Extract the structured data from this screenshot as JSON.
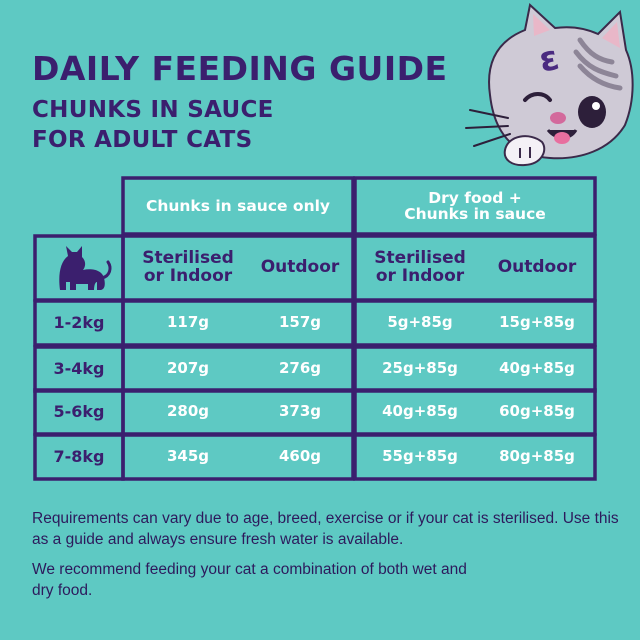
{
  "title": "DAILY FEEDING GUIDE",
  "subtitle_line1": "CHUNKS IN SAUCE",
  "subtitle_line2": "FOR ADULT CATS",
  "colors": {
    "background": "#5ec9c3",
    "purple": "#3b1f6e",
    "border": "#3b1f6e",
    "white": "#ffffff"
  },
  "table": {
    "group_headers": [
      "Chunks in sauce only",
      "Dry food +\nChunks in sauce"
    ],
    "group_header_2_line1": "Dry food +",
    "group_header_2_line2": "Chunks in sauce",
    "sub_headers": {
      "sterilised_line1": "Sterilised",
      "sterilised_line2": "or Indoor",
      "outdoor": "Outdoor"
    },
    "rows": [
      {
        "weight": "1-2kg",
        "only_sterilised": "117g",
        "only_outdoor": "157g",
        "mix_sterilised": "5g+85g",
        "mix_outdoor": "15g+85g"
      },
      {
        "weight": "3-4kg",
        "only_sterilised": "207g",
        "only_outdoor": "276g",
        "mix_sterilised": "25g+85g",
        "mix_outdoor": "40g+85g"
      },
      {
        "weight": "5-6kg",
        "only_sterilised": "280g",
        "only_outdoor": "373g",
        "mix_sterilised": "40g+85g",
        "mix_outdoor": "60g+85g"
      },
      {
        "weight": "7-8kg",
        "only_sterilised": "345g",
        "only_outdoor": "460g",
        "mix_sterilised": "55g+85g",
        "mix_outdoor": "80g+85g"
      }
    ]
  },
  "note1": "Requirements can vary due to age, breed, exercise or if your cat is sterilised. Use this as a guide and always ensure fresh water is available.",
  "note2": "We recommend feeding your cat a combination of both wet and dry food.",
  "icons": {
    "cat_silhouette": "cat-silhouette-icon",
    "mascot": "cat-mascot-illustration"
  }
}
